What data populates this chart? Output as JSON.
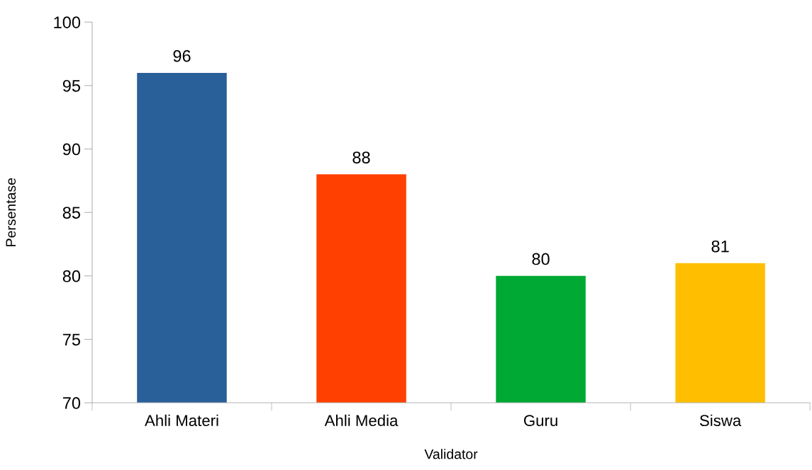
{
  "chart_data": {
    "type": "bar",
    "xlabel": "Validator",
    "ylabel": "Persentase",
    "categories": [
      "Ahli Materi",
      "Ahli Media",
      "Guru",
      "Siswa"
    ],
    "values": [
      96,
      88,
      80,
      81
    ],
    "colors": [
      "#2a6099",
      "#ff4000",
      "#00a933",
      "#ffbf00"
    ],
    "ylim": [
      70,
      100
    ],
    "yticks": [
      70,
      75,
      80,
      85,
      90,
      95,
      100
    ],
    "data_labels": true,
    "grid": false,
    "legend": false
  }
}
